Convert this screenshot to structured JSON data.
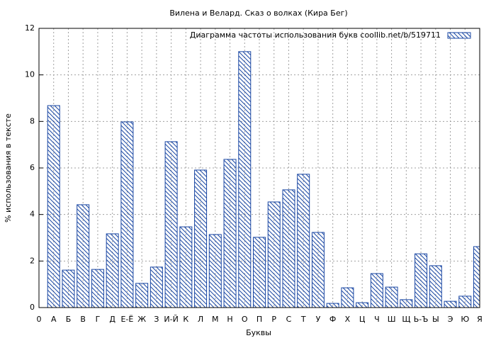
{
  "chart_data": {
    "type": "bar",
    "title": "Вилена и Велард. Сказ о волках (Кира Бег)",
    "xlabel": "Буквы",
    "ylabel": "% использования в тексте",
    "legend": "Диаграмма частоты использования букв  coollib.net/b/519711",
    "legend_position": "top-right",
    "color": "#1a47a3",
    "categories": [
      "0",
      "А",
      "Б",
      "В",
      "Г",
      "Д",
      "Е-Ё",
      "Ж",
      "З",
      "И-Й",
      "К",
      "Л",
      "М",
      "Н",
      "О",
      "П",
      "Р",
      "С",
      "Т",
      "У",
      "Ф",
      "Х",
      "Ц",
      "Ч",
      "Ш",
      "Щ",
      "Ь-Ъ",
      "Ы",
      "Э",
      "Ю",
      "Я"
    ],
    "values": [
      null,
      8.68,
      1.61,
      4.42,
      1.64,
      3.17,
      7.98,
      1.04,
      1.74,
      7.13,
      3.47,
      5.91,
      3.14,
      6.37,
      11.0,
      3.02,
      4.54,
      5.06,
      5.73,
      3.23,
      0.18,
      0.85,
      0.21,
      1.46,
      0.88,
      0.34,
      2.31,
      1.8,
      0.27,
      0.49,
      2.62
    ],
    "ylim": [
      0,
      12
    ],
    "yticks": [
      0,
      2,
      4,
      6,
      8,
      10,
      12
    ],
    "grid": true
  }
}
